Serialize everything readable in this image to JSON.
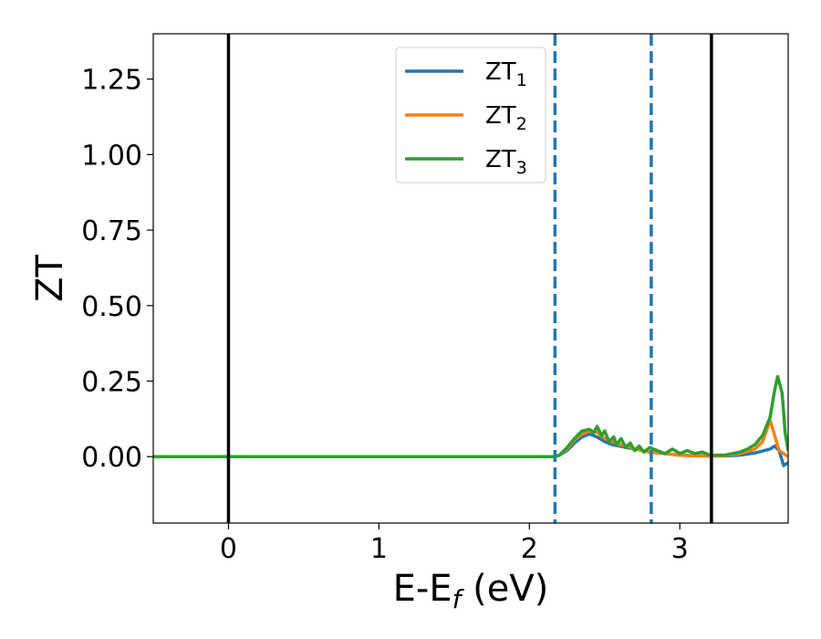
{
  "chart_data": {
    "type": "line",
    "xlabel": "E-E",
    "xlabel_sub": "f",
    "xlabel_unit": " (eV)",
    "ylabel": "ZT",
    "xlim": [
      -0.5,
      3.72
    ],
    "ylim": [
      -0.22,
      1.4
    ],
    "xticks": [
      0,
      1,
      2,
      3
    ],
    "xtick_labels": [
      "0",
      "1",
      "2",
      "3"
    ],
    "yticks": [
      0.0,
      0.25,
      0.5,
      0.75,
      1.0,
      1.25
    ],
    "ytick_labels": [
      "0.00",
      "0.25",
      "0.50",
      "0.75",
      "1.00",
      "1.25"
    ],
    "grid": false,
    "legend_position": "top-center",
    "vlines_solid": [
      0.0,
      3.21
    ],
    "vlines_dashed": [
      2.17,
      2.81
    ],
    "series": [
      {
        "name": "ZT",
        "name_sub": "1",
        "color": "#1f77b4",
        "x": [
          -0.5,
          2.17,
          2.2,
          2.25,
          2.3,
          2.35,
          2.4,
          2.45,
          2.5,
          2.55,
          2.6,
          2.65,
          2.7,
          2.8,
          2.9,
          3.0,
          3.1,
          3.2,
          3.3,
          3.4,
          3.5,
          3.6,
          3.63,
          3.66,
          3.69,
          3.72
        ],
        "y": [
          0.0,
          0.0,
          0.005,
          0.02,
          0.045,
          0.065,
          0.075,
          0.065,
          0.05,
          0.04,
          0.035,
          0.03,
          0.025,
          0.015,
          0.01,
          0.005,
          0.003,
          0.002,
          0.002,
          0.005,
          0.012,
          0.025,
          0.035,
          0.02,
          -0.03,
          -0.02
        ]
      },
      {
        "name": "ZT",
        "name_sub": "2",
        "color": "#ff7f0e",
        "x": [
          -0.5,
          2.17,
          2.2,
          2.25,
          2.3,
          2.35,
          2.4,
          2.45,
          2.5,
          2.55,
          2.6,
          2.65,
          2.7,
          2.8,
          2.9,
          3.0,
          3.1,
          3.2,
          3.3,
          3.4,
          3.5,
          3.55,
          3.6,
          3.63,
          3.66,
          3.72
        ],
        "y": [
          0.0,
          0.0,
          0.005,
          0.025,
          0.055,
          0.075,
          0.085,
          0.08,
          0.06,
          0.05,
          0.04,
          0.035,
          0.025,
          0.015,
          0.01,
          0.005,
          0.003,
          0.002,
          0.003,
          0.01,
          0.025,
          0.05,
          0.12,
          0.07,
          0.02,
          0.0
        ]
      },
      {
        "name": "ZT",
        "name_sub": "3",
        "color": "#2ca02c",
        "x": [
          -0.5,
          2.17,
          2.2,
          2.25,
          2.3,
          2.35,
          2.4,
          2.43,
          2.45,
          2.48,
          2.5,
          2.53,
          2.56,
          2.58,
          2.61,
          2.64,
          2.67,
          2.7,
          2.73,
          2.76,
          2.8,
          2.85,
          2.9,
          2.95,
          3.0,
          3.05,
          3.1,
          3.15,
          3.2,
          3.3,
          3.4,
          3.45,
          3.5,
          3.55,
          3.6,
          3.63,
          3.65,
          3.68,
          3.7,
          3.72
        ],
        "y": [
          0.0,
          0.0,
          0.005,
          0.03,
          0.06,
          0.085,
          0.09,
          0.08,
          0.1,
          0.07,
          0.085,
          0.05,
          0.065,
          0.04,
          0.06,
          0.03,
          0.045,
          0.02,
          0.035,
          0.015,
          0.03,
          0.02,
          0.01,
          0.025,
          0.01,
          0.02,
          0.01,
          0.015,
          0.005,
          0.005,
          0.015,
          0.025,
          0.04,
          0.07,
          0.13,
          0.22,
          0.265,
          0.21,
          0.08,
          0.02
        ]
      }
    ]
  }
}
